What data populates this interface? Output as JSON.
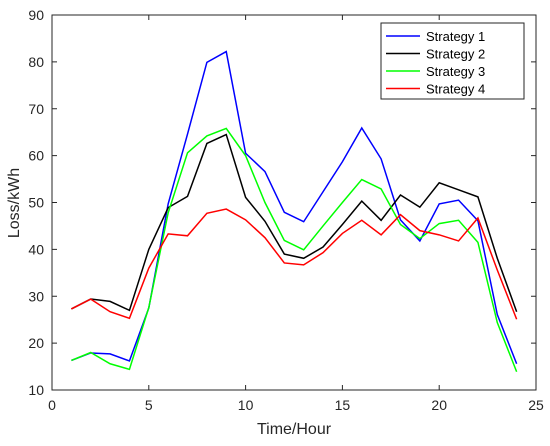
{
  "chart_data": {
    "type": "line",
    "xlabel": "Time/Hour",
    "ylabel": "Loss/kWh",
    "xlim": [
      0,
      25
    ],
    "ylim": [
      10,
      90
    ],
    "xticks": [
      "0",
      "5",
      "10",
      "15",
      "20",
      "25"
    ],
    "yticks": [
      "10",
      "20",
      "30",
      "40",
      "50",
      "60",
      "70",
      "80",
      "90"
    ],
    "grid": false,
    "legend_position": "top-right",
    "x": [
      1,
      2,
      3,
      4,
      5,
      6,
      7,
      8,
      9,
      10,
      11,
      12,
      13,
      14,
      15,
      16,
      17,
      18,
      19,
      20,
      21,
      22,
      23,
      24
    ],
    "series": [
      {
        "name": "Strategy 1",
        "color": "#0000ff",
        "values": [
          16.3,
          17.9,
          17.7,
          16.2,
          27.5,
          49.7,
          64.6,
          79.9,
          82.2,
          60.5,
          56.6,
          47.9,
          45.9,
          52.3,
          58.7,
          65.9,
          59.3,
          46.3,
          41.8,
          49.7,
          50.5,
          46.1,
          26.1,
          15.6
        ]
      },
      {
        "name": "Strategy 2",
        "color": "#000000",
        "values": [
          27.3,
          29.4,
          28.9,
          27.0,
          40.0,
          48.9,
          51.3,
          62.6,
          64.5,
          51.1,
          46.0,
          39.0,
          38.1,
          40.5,
          45.3,
          50.3,
          46.2,
          51.6,
          49.0,
          54.2,
          52.7,
          51.2,
          38.1,
          26.7
        ]
      },
      {
        "name": "Strategy 3",
        "color": "#00ff00",
        "values": [
          16.3,
          18.0,
          15.6,
          14.4,
          27.6,
          47.8,
          60.6,
          64.2,
          65.8,
          60.0,
          50.0,
          41.9,
          39.9,
          45.0,
          50.0,
          54.9,
          52.9,
          45.3,
          42.3,
          45.5,
          46.2,
          41.5,
          24.4,
          13.9
        ]
      },
      {
        "name": "Strategy 4",
        "color": "#ff0000",
        "values": [
          27.3,
          29.4,
          26.7,
          25.3,
          36.0,
          43.3,
          42.9,
          47.7,
          48.6,
          46.3,
          42.5,
          37.1,
          36.7,
          39.3,
          43.4,
          46.2,
          43.1,
          47.4,
          44.0,
          43.1,
          41.8,
          46.7,
          35.6,
          25.1
        ]
      }
    ]
  }
}
